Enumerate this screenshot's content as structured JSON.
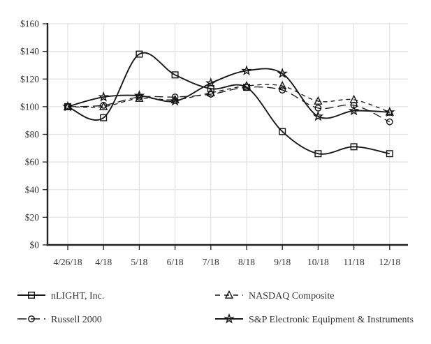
{
  "chart_data": {
    "type": "line",
    "title": "",
    "xlabel": "",
    "ylabel": "",
    "x_labels": [
      "4/26/18",
      "4/18",
      "5/18",
      "6/18",
      "7/18",
      "8/18",
      "9/18",
      "10/18",
      "11/18",
      "12/18"
    ],
    "ylim": [
      0,
      160
    ],
    "y_tick_step": 20,
    "y_tick_labels": [
      "$0",
      "$20",
      "$40",
      "$60",
      "$80",
      "$100",
      "$120",
      "$140",
      "$160"
    ],
    "grid": true,
    "legend_position": "bottom",
    "series": [
      {
        "name": "nLIGHT, Inc.",
        "marker": "square",
        "line": "solid",
        "values": [
          100,
          92,
          138,
          123,
          113,
          114,
          82,
          66,
          71,
          66
        ]
      },
      {
        "name": "NASDAQ Composite",
        "marker": "triangle",
        "line": "short-dash",
        "values": [
          100,
          100,
          106,
          105,
          110,
          115,
          115,
          104,
          105,
          96
        ]
      },
      {
        "name": "Russell 2000",
        "marker": "circle",
        "line": "long-dash",
        "values": [
          100,
          101,
          107,
          107,
          109,
          114,
          112,
          99,
          101,
          89
        ]
      },
      {
        "name": "S&P Electronic Equipment & Instruments",
        "marker": "star",
        "line": "solid",
        "values": [
          100,
          107,
          108,
          104,
          117,
          126,
          124,
          93,
          97,
          96
        ]
      }
    ],
    "legend_layout": {
      "columns": [
        [
          0,
          2
        ],
        [
          1,
          3
        ]
      ]
    },
    "colors": {
      "series_line": "#1a1a1a",
      "marker_stroke": "#111111",
      "grid": "#e2e2e2",
      "axis": "#222222",
      "text": "#333333",
      "background": "#ffffff"
    }
  }
}
